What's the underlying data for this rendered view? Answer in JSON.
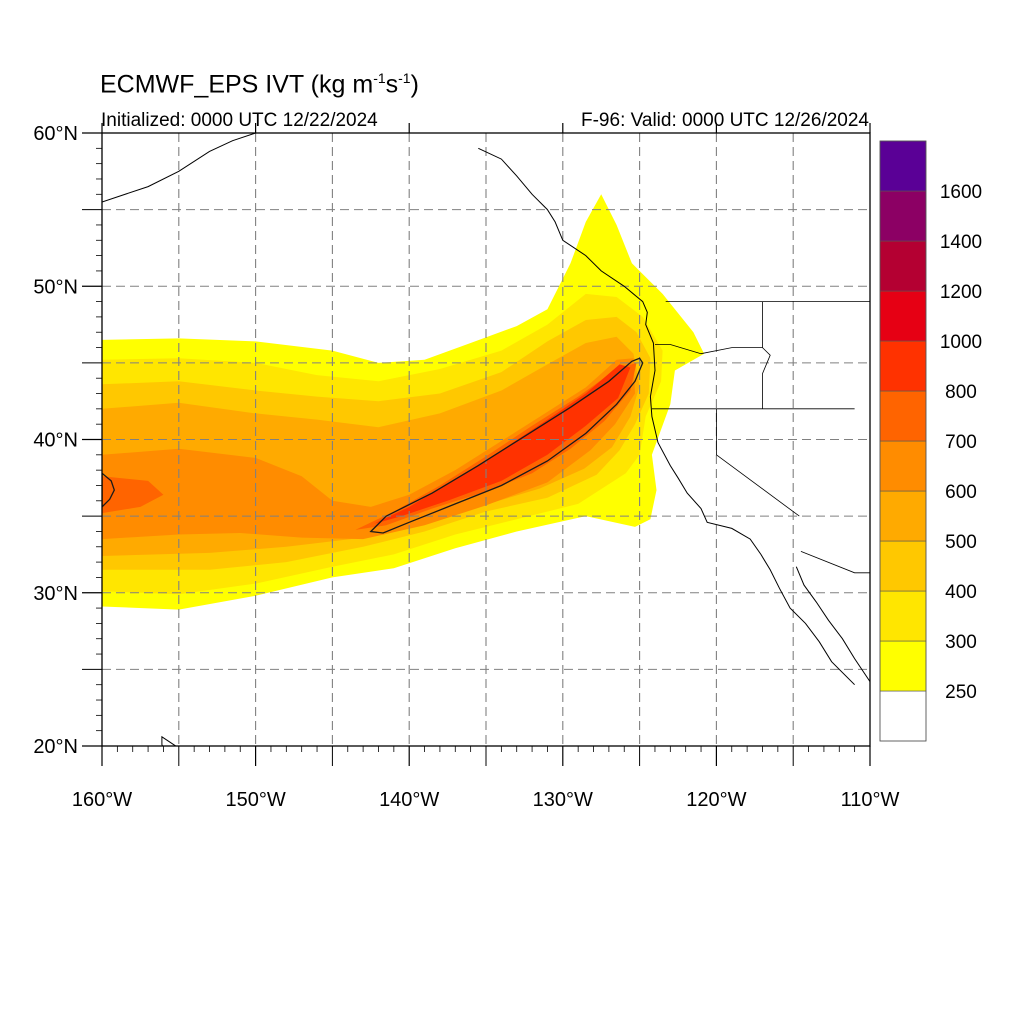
{
  "map": {
    "title_main": "ECMWF_EPS IVT (kg m",
    "title_exp1": "-1",
    "title_mid": "s",
    "title_exp2": "-1",
    "title_end": ")",
    "initialized": "Initialized: 0000 UTC 12/22/2024",
    "valid": "F-96: Valid: 0000 UTC 12/26/2024",
    "extent": {
      "lon": [
        -160,
        -110
      ],
      "lat": [
        20,
        60
      ]
    },
    "lon_ticks": [
      {
        "v": -160,
        "label": "160°W"
      },
      {
        "v": -150,
        "label": "150°W"
      },
      {
        "v": -140,
        "label": "140°W"
      },
      {
        "v": -130,
        "label": "130°W"
      },
      {
        "v": -120,
        "label": "120°W"
      },
      {
        "v": -110,
        "label": "110°W"
      }
    ],
    "lat_ticks": [
      {
        "v": 60,
        "label": "60°N"
      },
      {
        "v": 50,
        "label": "50°N"
      },
      {
        "v": 40,
        "label": "40°N"
      },
      {
        "v": 30,
        "label": "30°N"
      },
      {
        "v": 20,
        "label": "20°N"
      }
    ],
    "grid": "dashed, every 5 degrees"
  },
  "colorbar": {
    "bins": [
      {
        "color": "#ffffff"
      },
      {
        "color": "#ffff00"
      },
      {
        "color": "#ffe600"
      },
      {
        "color": "#ffc800"
      },
      {
        "color": "#ffaa00"
      },
      {
        "color": "#ff8c00"
      },
      {
        "color": "#ff6400"
      },
      {
        "color": "#ff3200"
      },
      {
        "color": "#e60014"
      },
      {
        "color": "#b40032"
      },
      {
        "color": "#8c0064"
      },
      {
        "color": "#5a0096"
      }
    ],
    "labels": [
      "250",
      "300",
      "400",
      "500",
      "600",
      "700",
      "800",
      "1000",
      "1200",
      "1400",
      "1600"
    ]
  },
  "ivt_field": [
    {
      "level": 250,
      "color": "#ffff00",
      "poly": [
        [
          -160,
          46.5
        ],
        [
          -155,
          46.6
        ],
        [
          -150,
          46.4
        ],
        [
          -145,
          45.8
        ],
        [
          -142,
          45
        ],
        [
          -139,
          45.2
        ],
        [
          -136,
          46.3
        ],
        [
          -133,
          47.4
        ],
        [
          -131,
          48.5
        ],
        [
          -129.5,
          51.5
        ],
        [
          -128.5,
          54.2
        ],
        [
          -127.5,
          56
        ],
        [
          -126.5,
          54
        ],
        [
          -125.5,
          51.5
        ],
        [
          -123.5,
          49.5
        ],
        [
          -121.5,
          47
        ],
        [
          -120.8,
          45.6
        ],
        [
          -122.7,
          44.5
        ],
        [
          -123,
          42.3
        ],
        [
          -124.2,
          39
        ],
        [
          -123.9,
          36.7
        ],
        [
          -124.3,
          34.8
        ],
        [
          -125.3,
          34.3
        ],
        [
          -128.5,
          35
        ],
        [
          -133,
          34
        ],
        [
          -137,
          32.9
        ],
        [
          -141,
          31.6
        ],
        [
          -145,
          31
        ],
        [
          -150,
          29.8
        ],
        [
          -155,
          28.9
        ],
        [
          -160,
          29.1
        ]
      ]
    },
    {
      "level": 300,
      "color": "#ffe600",
      "poly": [
        [
          -160,
          45.2
        ],
        [
          -155,
          45.3
        ],
        [
          -150,
          45
        ],
        [
          -146,
          44.2
        ],
        [
          -142,
          43.8
        ],
        [
          -138,
          44.6
        ],
        [
          -134,
          45.8
        ],
        [
          -131,
          47.5
        ],
        [
          -128.5,
          49.5
        ],
        [
          -126.5,
          49.3
        ],
        [
          -124.8,
          48
        ],
        [
          -123.5,
          45.8
        ],
        [
          -123.6,
          43.8
        ],
        [
          -124.6,
          41.5
        ],
        [
          -125,
          39
        ],
        [
          -125.9,
          37.8
        ],
        [
          -129,
          35.8
        ],
        [
          -133,
          34.8
        ],
        [
          -137,
          33.8
        ],
        [
          -141,
          32.5
        ],
        [
          -145,
          31.7
        ],
        [
          -150,
          30.6
        ],
        [
          -155,
          29.9
        ],
        [
          -160,
          30.1
        ]
      ]
    },
    {
      "level": 400,
      "color": "#ffc800",
      "poly": [
        [
          -160,
          43.6
        ],
        [
          -155,
          43.8
        ],
        [
          -150,
          43.2
        ],
        [
          -146,
          42.8
        ],
        [
          -142,
          42.5
        ],
        [
          -138,
          43
        ],
        [
          -134,
          44.4
        ],
        [
          -131,
          46.4
        ],
        [
          -128.5,
          47.8
        ],
        [
          -126.5,
          48
        ],
        [
          -125.2,
          47
        ],
        [
          -124.3,
          45.3
        ],
        [
          -124.4,
          43
        ],
        [
          -125.3,
          41
        ],
        [
          -126.3,
          39.3
        ],
        [
          -127.8,
          37.7
        ],
        [
          -131,
          36.2
        ],
        [
          -135,
          35.3
        ],
        [
          -139,
          34
        ],
        [
          -143,
          33
        ],
        [
          -148,
          32
        ],
        [
          -153,
          31.5
        ],
        [
          -160,
          31.5
        ]
      ]
    },
    {
      "level": 500,
      "color": "#ffaa00",
      "poly": [
        [
          -160,
          42
        ],
        [
          -155,
          42.4
        ],
        [
          -150,
          41.7
        ],
        [
          -146,
          41.3
        ],
        [
          -142,
          40.8
        ],
        [
          -138,
          41.7
        ],
        [
          -134,
          43.2
        ],
        [
          -131,
          44.9
        ],
        [
          -128.5,
          46.3
        ],
        [
          -126.5,
          46.7
        ],
        [
          -125.4,
          45.6
        ],
        [
          -125,
          43.5
        ],
        [
          -125.6,
          41.5
        ],
        [
          -126.8,
          39.5
        ],
        [
          -128.6,
          38.1
        ],
        [
          -131.5,
          36.8
        ],
        [
          -135.5,
          35.6
        ],
        [
          -139.5,
          34.6
        ],
        [
          -143,
          33.6
        ],
        [
          -148,
          33
        ],
        [
          -153,
          32.6
        ],
        [
          -160,
          32.4
        ]
      ]
    },
    {
      "level": 600,
      "color": "#ff8c00",
      "poly": [
        [
          -160,
          39
        ],
        [
          -155,
          39.4
        ],
        [
          -150,
          38.8
        ],
        [
          -147,
          37.6
        ],
        [
          -145,
          36
        ],
        [
          -142.5,
          35.6
        ],
        [
          -140,
          36.4
        ],
        [
          -137,
          38
        ],
        [
          -134,
          39.9
        ],
        [
          -131,
          41.8
        ],
        [
          -128.5,
          43.4
        ],
        [
          -126.5,
          45.2
        ],
        [
          -125.4,
          45.3
        ],
        [
          -125.3,
          43
        ],
        [
          -126.6,
          41
        ],
        [
          -128.2,
          39.3
        ],
        [
          -131,
          37.2
        ],
        [
          -135,
          35.7
        ],
        [
          -139,
          34.4
        ],
        [
          -143,
          33.5
        ],
        [
          -147,
          33.6
        ],
        [
          -151,
          33.9
        ],
        [
          -155,
          33.8
        ],
        [
          -160,
          33.5
        ]
      ]
    },
    {
      "level": 700,
      "color": "#ff6400",
      "poly": [
        [
          -160,
          37.6
        ],
        [
          -157,
          37.3
        ],
        [
          -156,
          36.4
        ],
        [
          -157.5,
          35.6
        ],
        [
          -160,
          35.2
        ]
      ]
    },
    {
      "level": 700,
      "color": "#ff6400",
      "poly": [
        [
          -143.5,
          34.1
        ],
        [
          -141,
          35.3
        ],
        [
          -138,
          37
        ],
        [
          -135,
          38.9
        ],
        [
          -132,
          40.9
        ],
        [
          -129,
          42.8
        ],
        [
          -126.5,
          44.6
        ],
        [
          -125.2,
          45
        ],
        [
          -125.6,
          43.2
        ],
        [
          -127.3,
          41.2
        ],
        [
          -129.5,
          39.4
        ],
        [
          -132,
          37.8
        ],
        [
          -135,
          36.6
        ],
        [
          -138.5,
          35.5
        ],
        [
          -141.5,
          34.4
        ]
      ]
    },
    {
      "level": 800,
      "color": "#ff3200",
      "poly": [
        [
          -142.3,
          34.5
        ],
        [
          -140,
          35.6
        ],
        [
          -137,
          37.4
        ],
        [
          -134,
          39.3
        ],
        [
          -131,
          41.3
        ],
        [
          -128.5,
          43
        ],
        [
          -126.3,
          44.9
        ],
        [
          -125.6,
          44.7
        ],
        [
          -126.4,
          42.7
        ],
        [
          -128.5,
          40.9
        ],
        [
          -131,
          39
        ],
        [
          -134,
          37.3
        ],
        [
          -137.5,
          36
        ],
        [
          -140.5,
          35
        ]
      ]
    }
  ],
  "contours": [
    {
      "level": 700,
      "poly": [
        [
          -142.5,
          34
        ],
        [
          -141.5,
          35
        ],
        [
          -138.5,
          36.5
        ],
        [
          -135.5,
          38.3
        ],
        [
          -132.5,
          40.2
        ],
        [
          -129.5,
          42.1
        ],
        [
          -127,
          43.8
        ],
        [
          -125.5,
          45.1
        ],
        [
          -125,
          45.3
        ],
        [
          -124.8,
          45
        ],
        [
          -125.3,
          43.8
        ],
        [
          -126.5,
          42.3
        ],
        [
          -128.5,
          40.4
        ],
        [
          -131,
          38.6
        ],
        [
          -134,
          37
        ],
        [
          -137,
          35.8
        ],
        [
          -140,
          34.6
        ],
        [
          -141.7,
          33.9
        ]
      ]
    },
    {
      "level": 700,
      "poly": [
        [
          -160,
          37.8
        ],
        [
          -159.4,
          37.3
        ],
        [
          -159.2,
          36.7
        ],
        [
          -159.5,
          36.1
        ],
        [
          -160,
          35.6
        ]
      ]
    }
  ],
  "land": {
    "coast": [
      [
        -135.5,
        59
      ],
      [
        -134,
        58.3
      ],
      [
        -133,
        57.2
      ],
      [
        -132,
        56
      ],
      [
        -131,
        55
      ],
      [
        -130.5,
        54.2
      ],
      [
        -130,
        53
      ],
      [
        -128.5,
        52
      ],
      [
        -127.5,
        51
      ],
      [
        -126,
        50
      ],
      [
        -124.8,
        49
      ],
      [
        -124.5,
        48.3
      ],
      [
        -124.6,
        47.5
      ],
      [
        -124.1,
        46.3
      ],
      [
        -124,
        44.5
      ],
      [
        -124.3,
        42.8
      ],
      [
        -124.2,
        41.5
      ],
      [
        -123.8,
        39.8
      ],
      [
        -123,
        38.3
      ],
      [
        -122.5,
        37.5
      ],
      [
        -121.9,
        36.5
      ],
      [
        -121,
        35.5
      ],
      [
        -120.6,
        34.6
      ],
      [
        -119,
        34.2
      ],
      [
        -117.8,
        33.5
      ],
      [
        -117.1,
        32.5
      ],
      [
        -116.5,
        31.5
      ],
      [
        -115.9,
        30.3
      ],
      [
        -115.2,
        29
      ],
      [
        -114.2,
        28
      ],
      [
        -113.3,
        26.8
      ],
      [
        -112.5,
        25.5
      ],
      [
        -111,
        24
      ]
    ],
    "gulf": [
      [
        -114.8,
        31.7
      ],
      [
        -114.3,
        30.5
      ],
      [
        -113.5,
        29.4
      ],
      [
        -112.7,
        28.2
      ],
      [
        -111.8,
        27
      ],
      [
        -111,
        25.7
      ],
      [
        -110,
        24.2
      ]
    ],
    "alaska": [
      [
        -160,
        55.5
      ],
      [
        -157,
        56.5
      ],
      [
        -155,
        57.5
      ],
      [
        -153,
        58.8
      ],
      [
        -151.5,
        59.5
      ],
      [
        -150,
        60
      ]
    ],
    "hawaii": [
      [
        -156.1,
        20.6
      ],
      [
        -155.2,
        20
      ],
      [
        -155,
        19.6
      ],
      [
        -155.8,
        19.3
      ],
      [
        -156.1,
        20.1
      ]
    ],
    "borders": [
      [
        [
          -123.3,
          49
        ],
        [
          -115,
          49
        ],
        [
          -110,
          49
        ]
      ],
      [
        [
          -124.2,
          42
        ],
        [
          -117,
          42
        ],
        [
          -111,
          42
        ]
      ],
      [
        [
          -120,
          42
        ],
        [
          -120,
          39
        ],
        [
          -114.6,
          35
        ]
      ],
      [
        [
          -117,
          49
        ],
        [
          -117,
          46
        ],
        [
          -116.5,
          45.5
        ],
        [
          -117,
          44.3
        ],
        [
          -117,
          42
        ]
      ],
      [
        [
          -114.5,
          32.7
        ],
        [
          -111,
          31.3
        ],
        [
          -110,
          31.3
        ]
      ],
      [
        [
          -124,
          46.2
        ],
        [
          -123,
          46.2
        ],
        [
          -121,
          45.6
        ],
        [
          -119,
          46
        ],
        [
          -117,
          46
        ]
      ]
    ]
  }
}
